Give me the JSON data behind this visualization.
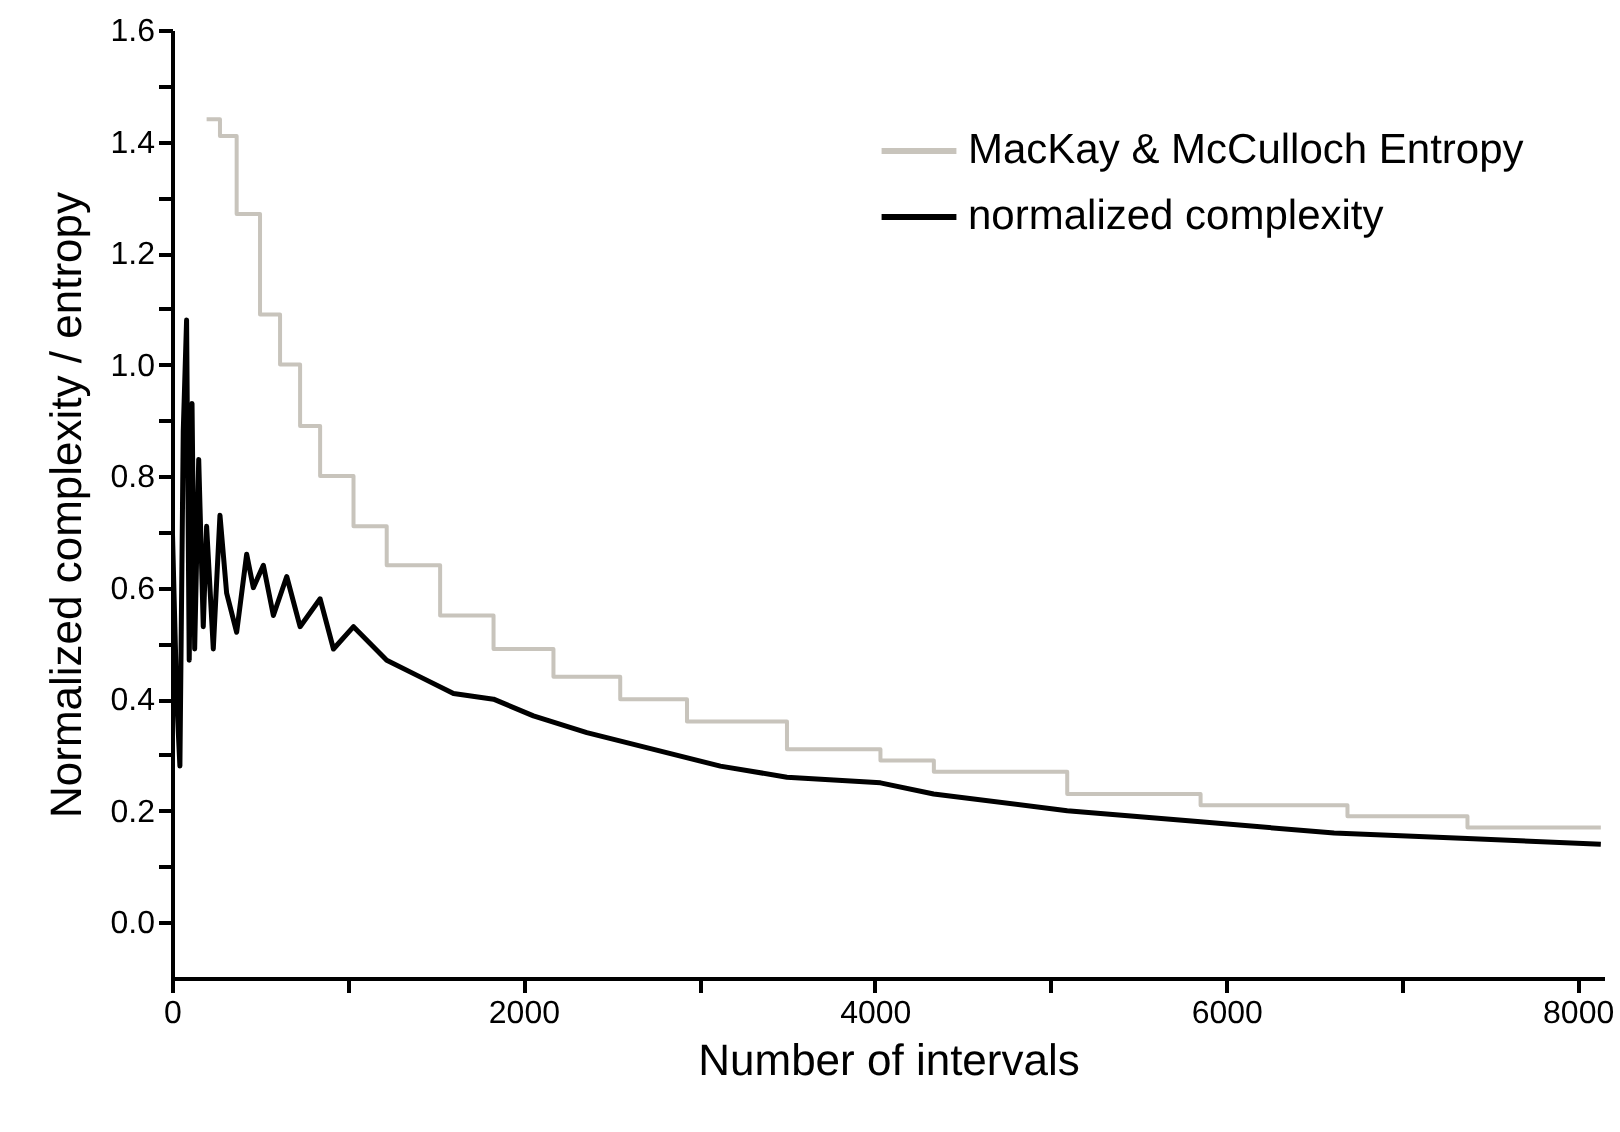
{
  "chart_data": {
    "type": "line",
    "xlabel": "Number of intervals",
    "ylabel": "Normalized complexity / entropy",
    "xlim": [
      0,
      8150
    ],
    "ylim": [
      -0.1,
      1.6
    ],
    "xticks": [
      0,
      {
        "value": 1000,
        "label": null
      },
      2000,
      {
        "value": 3000,
        "label": null
      },
      4000,
      {
        "value": 5000,
        "label": null
      },
      6000,
      {
        "value": 7000,
        "label": null
      },
      8000
    ],
    "yticks": [
      {
        "value": 0,
        "label": "0.0"
      },
      {
        "value": 0.1,
        "label": null
      },
      {
        "value": 0.2,
        "label": "0.2"
      },
      {
        "value": 0.3,
        "label": null
      },
      {
        "value": 0.4,
        "label": "0.4"
      },
      {
        "value": 0.5,
        "label": null
      },
      {
        "value": 0.6,
        "label": "0.6"
      },
      {
        "value": 0.7,
        "label": null
      },
      {
        "value": 0.8,
        "label": "0.8"
      },
      {
        "value": 0.9,
        "label": null
      },
      {
        "value": 1.0,
        "label": "1.0"
      },
      {
        "value": 1.1,
        "label": null
      },
      {
        "value": 1.2,
        "label": "1.2"
      },
      {
        "value": 1.3,
        "label": null
      },
      {
        "value": 1.4,
        "label": "1.4"
      },
      {
        "value": 1.5,
        "label": null
      },
      {
        "value": 1.6,
        "label": "1.6"
      }
    ],
    "grid": false,
    "legend": "top right",
    "line_style": "solid",
    "marker": "none",
    "series": [
      {
        "name": "MacKay & McCulloch Entropy",
        "type": "step",
        "color": "#c8c4bc",
        "x": [
          197,
          273,
          368,
          501,
          615,
          729,
          843,
          1033,
          1222,
          1526,
          1830,
          2171,
          2551,
          2931,
          3500,
          4032,
          4336,
          5095,
          5854,
          6690,
          7373,
          8132
        ],
        "values": [
          1.44,
          1.41,
          1.27,
          1.09,
          1.0,
          0.89,
          0.8,
          0.71,
          0.64,
          0.55,
          0.49,
          0.44,
          0.4,
          0.36,
          0.31,
          0.29,
          0.27,
          0.23,
          0.21,
          0.19,
          0.17,
          0.17
        ]
      },
      {
        "name": "normalized complexity",
        "color": "#000000",
        "x": [
          0,
          27,
          45,
          64,
          83,
          98,
          114,
          129,
          152,
          178,
          197,
          235,
          273,
          311,
          368,
          425,
          463,
          520,
          577,
          653,
          729,
          843,
          919,
          1033,
          1222,
          1412,
          1602,
          1830,
          2057,
          2361,
          2741,
          3121,
          3500,
          4032,
          4335,
          5095,
          5854,
          6614,
          7373,
          8132
        ],
        "values": [
          0.73,
          0.4,
          0.28,
          0.88,
          1.08,
          0.47,
          0.93,
          0.49,
          0.83,
          0.53,
          0.71,
          0.49,
          0.73,
          0.59,
          0.52,
          0.66,
          0.6,
          0.64,
          0.55,
          0.62,
          0.53,
          0.58,
          0.49,
          0.53,
          0.47,
          0.44,
          0.41,
          0.4,
          0.37,
          0.34,
          0.31,
          0.28,
          0.26,
          0.25,
          0.23,
          0.2,
          0.18,
          0.16,
          0.15,
          0.14
        ]
      }
    ]
  }
}
